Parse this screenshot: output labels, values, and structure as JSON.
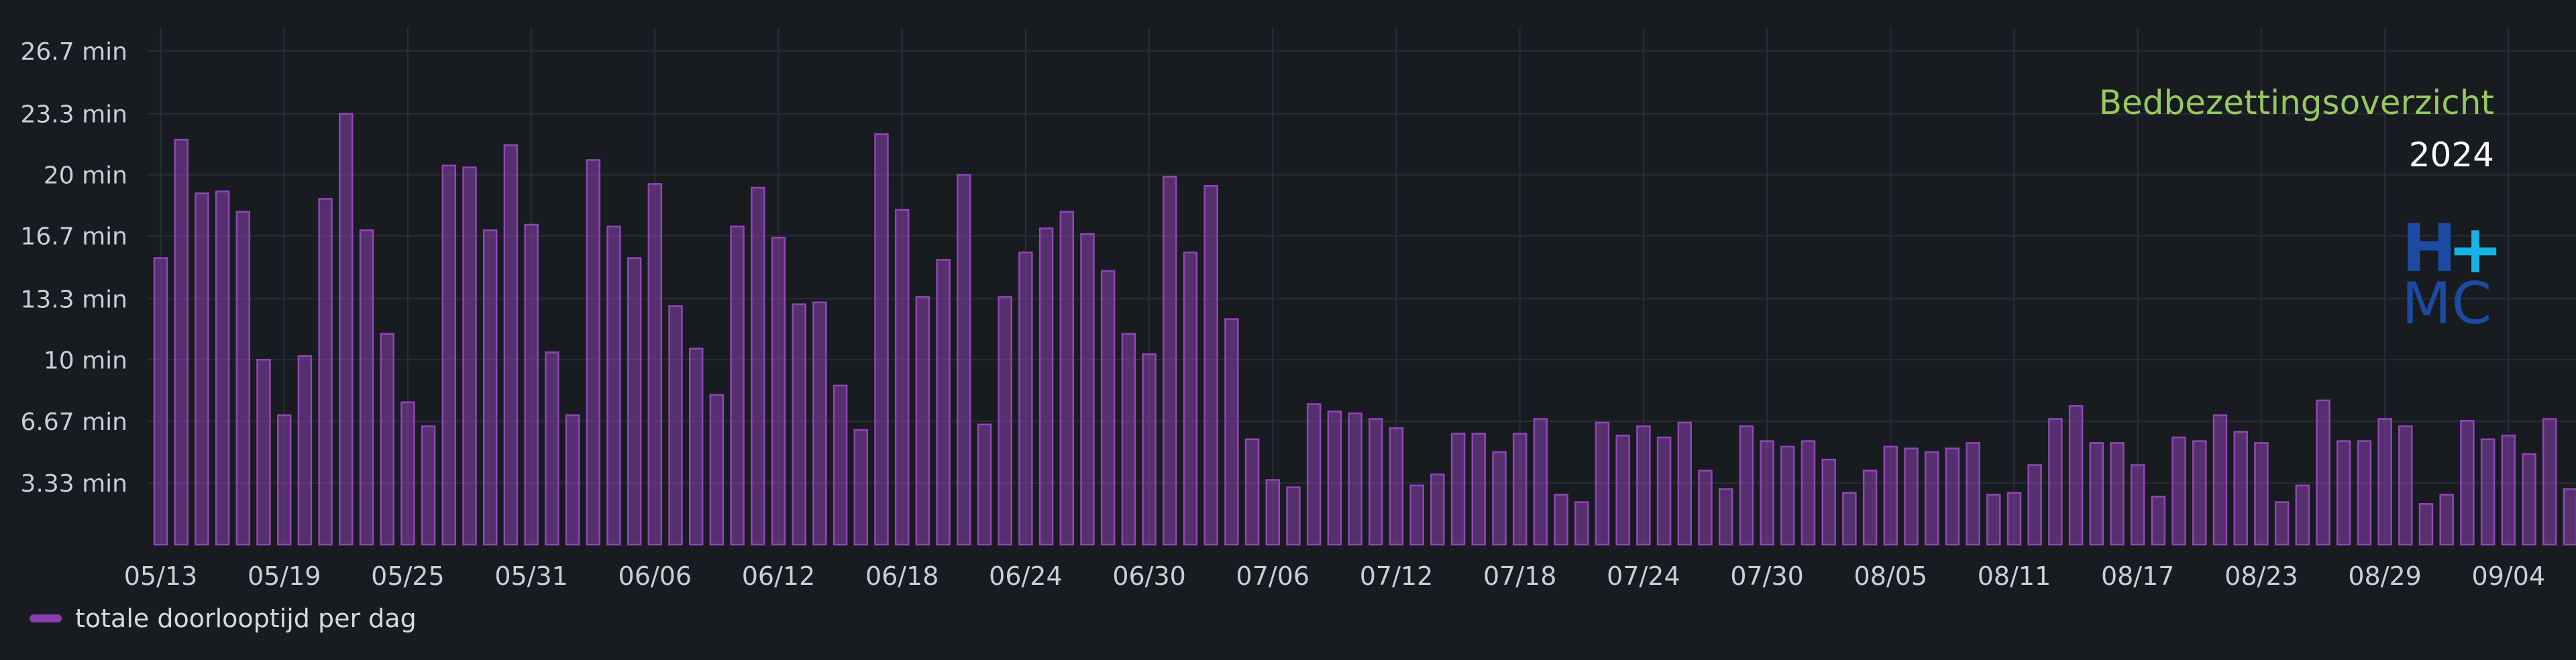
{
  "chart_data": {
    "type": "bar",
    "title": "Bedbezettingsoverzicht",
    "subtitle": "2024",
    "logo": {
      "line1": "H",
      "plus": "+",
      "line2": "MC"
    },
    "y_unit": "min",
    "ylim": [
      0,
      28
    ],
    "y_ticks": [
      {
        "value": 3.33,
        "label": "3.33 min"
      },
      {
        "value": 6.67,
        "label": "6.67 min"
      },
      {
        "value": 10,
        "label": "10 min"
      },
      {
        "value": 13.3,
        "label": "13.3 min"
      },
      {
        "value": 16.7,
        "label": "16.7 min"
      },
      {
        "value": 20,
        "label": "20 min"
      },
      {
        "value": 23.3,
        "label": "23.3 min"
      },
      {
        "value": 26.7,
        "label": "26.7 min"
      }
    ],
    "x_ticks": [
      "05/13",
      "05/19",
      "05/25",
      "05/31",
      "06/06",
      "06/12",
      "06/18",
      "06/24",
      "06/30",
      "07/06",
      "07/12",
      "07/18",
      "07/24",
      "07/30",
      "08/05",
      "08/11",
      "08/17",
      "08/23",
      "08/29",
      "09/04"
    ],
    "grid": true,
    "legend_position": "bottom-left",
    "series": [
      {
        "name": "totale doorlooptijd per dag",
        "color": "#8a3faf",
        "start_date": "05/13",
        "values": [
          15.5,
          21.9,
          19.0,
          19.1,
          18.0,
          10.0,
          7.0,
          10.2,
          18.7,
          23.3,
          17.0,
          11.4,
          7.7,
          6.4,
          20.5,
          20.4,
          17.0,
          21.6,
          17.3,
          10.4,
          7.0,
          20.8,
          17.2,
          15.5,
          19.5,
          12.9,
          10.6,
          8.1,
          17.2,
          19.3,
          16.6,
          13.0,
          13.1,
          8.6,
          6.2,
          22.2,
          18.1,
          13.4,
          15.4,
          20.0,
          6.5,
          13.4,
          15.8,
          17.1,
          18.0,
          16.8,
          14.8,
          11.4,
          10.3,
          19.9,
          15.8,
          19.4,
          12.2,
          5.7,
          3.5,
          3.1,
          7.6,
          7.2,
          7.1,
          6.8,
          6.3,
          3.2,
          3.8,
          6.0,
          6.0,
          5.0,
          6.0,
          6.8,
          2.7,
          2.3,
          6.6,
          5.9,
          6.4,
          5.8,
          6.6,
          4.0,
          3.0,
          6.4,
          5.6,
          5.3,
          5.6,
          4.6,
          2.8,
          4.0,
          5.3,
          5.2,
          5.0,
          5.2,
          5.5,
          2.7,
          2.8,
          4.3,
          6.8,
          7.5,
          5.5,
          5.5,
          4.3,
          2.6,
          5.8,
          5.6,
          7.0,
          6.1,
          5.5,
          2.3,
          3.2,
          7.8,
          5.6,
          5.6,
          6.8,
          6.4,
          2.2,
          2.7,
          6.7,
          5.7,
          5.9,
          4.9,
          6.8,
          3.0
        ]
      }
    ]
  }
}
